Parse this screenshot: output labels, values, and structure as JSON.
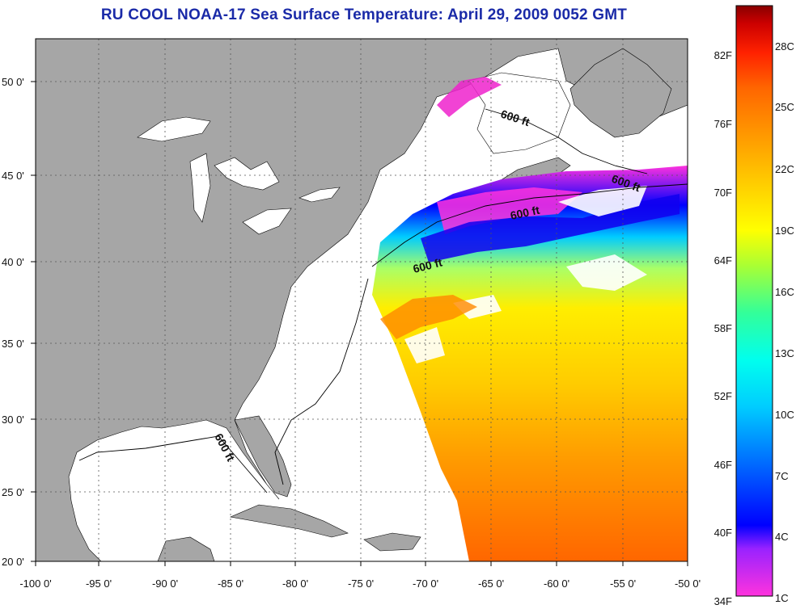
{
  "title": "RU COOL  NOAA-17  Sea Surface Temperature:  April 29, 2009 0052 GMT",
  "axes": {
    "x_ticks": [
      "-100 0'",
      "-95 0'",
      "-90 0'",
      "-85 0'",
      "-80 0'",
      "-75 0'",
      "-70 0'",
      "-65 0'",
      "-60 0'",
      "-55 0'",
      "-50 0'"
    ],
    "y_ticks": [
      "50 0'",
      "45 0'",
      "40 0'",
      "35 0'",
      "30 0'",
      "25 0'",
      "20 0'"
    ],
    "lon_range": [
      -100,
      -50
    ],
    "lat_range": [
      20,
      52.5
    ]
  },
  "contours": {
    "label": "600 ft",
    "count": 5
  },
  "colorbar": {
    "fahrenheit_labels": [
      "82F",
      "76F",
      "70F",
      "64F",
      "58F",
      "52F",
      "46F",
      "40F",
      "34F"
    ],
    "celsius_labels": [
      "28C",
      "25C",
      "22C",
      "19C",
      "16C",
      "13C",
      "10C",
      "7C",
      "4C",
      "1C"
    ],
    "colors": [
      "#ff33dd",
      "#9922ff",
      "#0000ff",
      "#0066ff",
      "#00ccff",
      "#00ffee",
      "#33ff99",
      "#aaff33",
      "#ffff00",
      "#ffcc00",
      "#ff9900",
      "#ff6600",
      "#ff2200",
      "#cc0000",
      "#880000"
    ]
  },
  "colors": {
    "land": "#a6a6a6",
    "ocean": "#ffffff",
    "title": "#1a2aa8",
    "grid": "#555555"
  }
}
